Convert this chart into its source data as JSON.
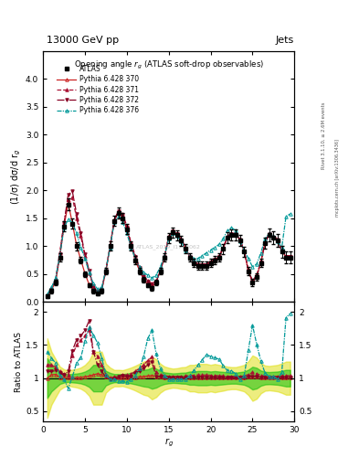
{
  "title_top": "13000 GeV pp",
  "title_right": "Jets",
  "plot_title": "Opening angle $r_g$ (ATLAS soft-drop observables)",
  "watermark": "ATLAS_2019_I1772062",
  "right_label1": "Rivet 3.1.10, ≥ 2.6M events",
  "right_label2": "mcplots.cern.ch [arXiv:1306.3436]",
  "xlabel": "$r_g$",
  "ylabel_main": "(1/σ) dσ/d r$_g$",
  "ylabel_ratio": "Ratio to ATLAS",
  "xlim": [
    0,
    30
  ],
  "ylim_main": [
    0,
    4.49
  ],
  "ylim_ratio": [
    0.35,
    2.15
  ],
  "main_yticks": [
    0,
    0.5,
    1.0,
    1.5,
    2.0,
    2.5,
    3.0,
    3.5,
    4.0
  ],
  "ratio_yticks": [
    0.5,
    1.0,
    1.5,
    2.0
  ],
  "x": [
    0.5,
    1.0,
    1.5,
    2.0,
    2.5,
    3.0,
    3.5,
    4.0,
    4.5,
    5.0,
    5.5,
    6.0,
    6.5,
    7.0,
    7.5,
    8.0,
    8.5,
    9.0,
    9.5,
    10.0,
    10.5,
    11.0,
    11.5,
    12.0,
    12.5,
    13.0,
    13.5,
    14.0,
    14.5,
    15.0,
    15.5,
    16.0,
    16.5,
    17.0,
    17.5,
    18.0,
    18.5,
    19.0,
    19.5,
    20.0,
    20.5,
    21.0,
    21.5,
    22.0,
    22.5,
    23.0,
    23.5,
    24.0,
    24.5,
    25.0,
    25.5,
    26.0,
    26.5,
    27.0,
    27.5,
    28.0,
    28.5,
    29.0,
    29.5
  ],
  "atlas_y": [
    0.1,
    0.2,
    0.35,
    0.8,
    1.35,
    1.75,
    1.4,
    1.0,
    0.75,
    0.5,
    0.3,
    0.2,
    0.15,
    0.2,
    0.55,
    1.0,
    1.45,
    1.6,
    1.5,
    1.3,
    1.0,
    0.75,
    0.55,
    0.4,
    0.3,
    0.25,
    0.35,
    0.55,
    0.8,
    1.15,
    1.25,
    1.2,
    1.1,
    0.95,
    0.8,
    0.7,
    0.65,
    0.65,
    0.65,
    0.7,
    0.75,
    0.8,
    0.95,
    1.15,
    1.2,
    1.2,
    1.1,
    0.9,
    0.55,
    0.35,
    0.45,
    0.7,
    1.05,
    1.2,
    1.15,
    1.1,
    0.9,
    0.8,
    0.8
  ],
  "atlas_yerr": [
    0.03,
    0.04,
    0.05,
    0.07,
    0.09,
    0.1,
    0.09,
    0.07,
    0.06,
    0.05,
    0.04,
    0.04,
    0.03,
    0.04,
    0.06,
    0.08,
    0.09,
    0.1,
    0.09,
    0.09,
    0.08,
    0.07,
    0.06,
    0.05,
    0.04,
    0.04,
    0.05,
    0.06,
    0.07,
    0.09,
    0.09,
    0.09,
    0.09,
    0.08,
    0.08,
    0.07,
    0.07,
    0.07,
    0.07,
    0.07,
    0.08,
    0.08,
    0.09,
    0.1,
    0.1,
    0.1,
    0.1,
    0.09,
    0.07,
    0.06,
    0.07,
    0.08,
    0.1,
    0.11,
    0.11,
    0.11,
    0.1,
    0.1,
    0.1
  ],
  "py370_y": [
    0.1,
    0.21,
    0.37,
    0.81,
    1.36,
    1.77,
    1.41,
    1.01,
    0.76,
    0.51,
    0.31,
    0.21,
    0.16,
    0.21,
    0.56,
    1.01,
    1.46,
    1.61,
    1.51,
    1.31,
    1.01,
    0.76,
    0.56,
    0.41,
    0.31,
    0.26,
    0.36,
    0.56,
    0.81,
    1.16,
    1.26,
    1.21,
    1.11,
    0.96,
    0.81,
    0.71,
    0.66,
    0.66,
    0.66,
    0.71,
    0.76,
    0.81,
    0.96,
    1.16,
    1.21,
    1.21,
    1.11,
    0.91,
    0.56,
    0.36,
    0.46,
    0.71,
    1.06,
    1.21,
    1.16,
    1.11,
    0.91,
    0.81,
    0.81
  ],
  "py371_y": [
    0.12,
    0.24,
    0.41,
    0.88,
    1.43,
    1.83,
    1.88,
    1.5,
    1.18,
    0.82,
    0.52,
    0.28,
    0.2,
    0.24,
    0.58,
    1.0,
    1.48,
    1.63,
    1.58,
    1.36,
    1.06,
    0.83,
    0.63,
    0.48,
    0.38,
    0.33,
    0.38,
    0.58,
    0.83,
    1.18,
    1.28,
    1.23,
    1.13,
    0.98,
    0.83,
    0.73,
    0.68,
    0.68,
    0.68,
    0.73,
    0.78,
    0.83,
    0.98,
    1.18,
    1.23,
    1.23,
    1.13,
    0.93,
    0.58,
    0.38,
    0.48,
    0.73,
    1.08,
    1.23,
    1.18,
    1.13,
    0.93,
    0.83,
    0.83
  ],
  "py372_y": [
    0.11,
    0.22,
    0.39,
    0.86,
    1.41,
    1.93,
    1.98,
    1.58,
    1.23,
    0.86,
    0.56,
    0.28,
    0.18,
    0.22,
    0.56,
    0.98,
    1.45,
    1.63,
    1.56,
    1.33,
    1.03,
    0.81,
    0.61,
    0.46,
    0.36,
    0.31,
    0.36,
    0.56,
    0.81,
    1.16,
    1.26,
    1.21,
    1.11,
    0.96,
    0.81,
    0.71,
    0.66,
    0.66,
    0.66,
    0.71,
    0.76,
    0.81,
    0.96,
    1.16,
    1.21,
    1.21,
    1.11,
    0.91,
    0.56,
    0.36,
    0.46,
    0.71,
    1.06,
    1.21,
    1.16,
    1.11,
    0.91,
    0.81,
    0.81
  ],
  "py376_y": [
    0.14,
    0.26,
    0.43,
    0.83,
    1.33,
    1.48,
    1.43,
    1.23,
    0.98,
    0.78,
    0.53,
    0.33,
    0.23,
    0.26,
    0.58,
    0.98,
    1.43,
    1.53,
    1.43,
    1.23,
    0.98,
    0.78,
    0.63,
    0.53,
    0.48,
    0.43,
    0.48,
    0.63,
    0.83,
    1.13,
    1.23,
    1.18,
    1.08,
    0.93,
    0.83,
    0.78,
    0.78,
    0.83,
    0.88,
    0.93,
    0.98,
    1.03,
    1.13,
    1.28,
    1.33,
    1.28,
    1.08,
    0.93,
    0.78,
    0.63,
    0.68,
    0.88,
    1.13,
    1.23,
    1.18,
    1.08,
    0.98,
    1.53,
    1.58
  ],
  "py370_color": "#cc2222",
  "py371_color": "#aa1133",
  "py372_color": "#880022",
  "py376_color": "#009999",
  "atlas_color": "#000000",
  "band_green": "#00bb00",
  "band_yellow": "#dddd00",
  "band_green_alpha": 0.5,
  "band_yellow_alpha": 0.5
}
